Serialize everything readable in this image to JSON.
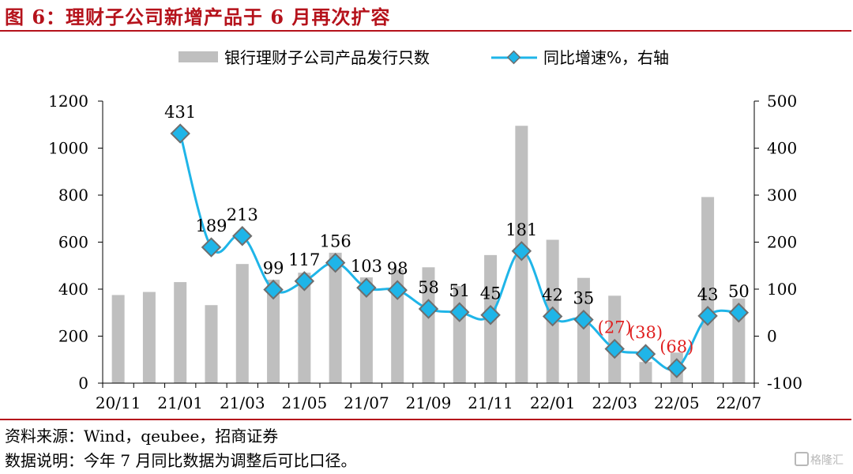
{
  "header": {
    "title": "图 6：理财子公司新增产品于 6 月再次扩容"
  },
  "notes": {
    "source": "资料来源：Wind，qeubee，招商证券",
    "desc": "数据说明：今年 7 月同比数据为调整后可比口径。"
  },
  "watermark": {
    "text": "格隆汇"
  },
  "colors": {
    "bar": "#bfbfbf",
    "line": "#1fb5e8",
    "marker": "#1fb5e8",
    "marker_border": "#6e6e6e",
    "negative_label": "#e02020",
    "title": "#b5121b"
  },
  "chart_data": {
    "type": "bar",
    "categories": [
      "20/11",
      "20/12",
      "21/01",
      "21/02",
      "21/03",
      "21/04",
      "21/05",
      "21/06",
      "21/07",
      "21/08",
      "21/09",
      "21/10",
      "21/11",
      "21/12",
      "22/01",
      "22/02",
      "22/03",
      "22/04",
      "22/05",
      "22/06",
      "22/07"
    ],
    "x_tick_labels": [
      "20/11",
      "21/01",
      "21/03",
      "21/05",
      "21/07",
      "21/09",
      "21/11",
      "22/01",
      "22/03",
      "22/05",
      "22/07"
    ],
    "series": [
      {
        "name": "银行理财子公司产品发行只数",
        "type": "bar",
        "axis": "left",
        "values": [
          375,
          388,
          430,
          332,
          507,
          440,
          470,
          555,
          450,
          483,
          493,
          413,
          545,
          1095,
          610,
          448,
          372,
          90,
          130,
          792,
          360
        ]
      },
      {
        "name": "同比增速%，右轴",
        "type": "line",
        "axis": "right",
        "values": [
          null,
          null,
          431,
          189,
          213,
          99,
          117,
          156,
          103,
          98,
          58,
          51,
          45,
          181,
          42,
          35,
          -27,
          -38,
          -68,
          43,
          50
        ],
        "labels": [
          null,
          null,
          "431",
          "189",
          "213",
          "99",
          "117",
          "156",
          "103",
          "98",
          "58",
          "51",
          "45",
          "181",
          "42",
          "35",
          "(27)",
          "(38)",
          "(68)",
          "43",
          "50"
        ]
      }
    ],
    "left_axis": {
      "min": 0,
      "max": 1200,
      "ticks": [
        "0",
        "200",
        "400",
        "600",
        "800",
        "1000",
        "1200"
      ]
    },
    "right_axis": {
      "min": -100,
      "max": 500,
      "ticks": [
        "-100",
        "0",
        "100",
        "200",
        "300",
        "400",
        "500"
      ]
    },
    "legend_position": "top",
    "grid": false
  }
}
